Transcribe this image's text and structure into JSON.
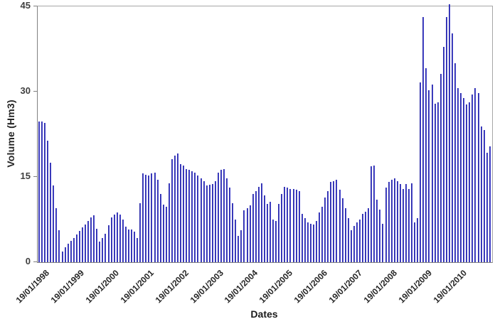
{
  "chart_data": {
    "type": "bar",
    "title": "",
    "xlabel": "Dates",
    "ylabel": "Volume (Hm3)",
    "ylim": [
      0,
      45
    ],
    "y_ticks": [
      0,
      15,
      30,
      45
    ],
    "grid": false,
    "legend": "none",
    "bar_color": "#4444cb",
    "axis_color": "#808080",
    "frame_color": "#a6a6a6",
    "x_tick_labels": [
      "19/01/1998",
      "19/01/1999",
      "19/01/2000",
      "19/01/2001",
      "19/01/2002",
      "19/01/2003",
      "19/01/2004",
      "19/01/2005",
      "19/01/2006",
      "19/01/2007",
      "19/01/2008",
      "19/01/2009",
      "19/01/2010"
    ],
    "x_ticks_every_n_bars": 12,
    "series_note": "monthly volumes, first bar 19/01/1998, last bar Jan 2011, values in Hm3 estimated from pixels",
    "values": [
      24.7,
      24.7,
      24.5,
      21.4,
      17.5,
      13.5,
      9.5,
      5.6,
      1.9,
      2.6,
      3.3,
      3.8,
      4.3,
      4.9,
      5.5,
      6.1,
      6.6,
      7.2,
      7.9,
      8.3,
      5.9,
      3.6,
      4.3,
      5.0,
      6.5,
      7.9,
      8.4,
      8.7,
      8.4,
      7.5,
      6.3,
      5.7,
      5.8,
      5.4,
      4.3,
      10.4,
      15.6,
      15.4,
      15.2,
      15.6,
      15.8,
      14.5,
      12.0,
      10.1,
      9.8,
      13.9,
      18.1,
      18.7,
      19.1,
      17.3,
      17.0,
      16.4,
      16.2,
      16.0,
      15.7,
      15.3,
      14.8,
      14.3,
      13.5,
      13.6,
      13.7,
      14.3,
      15.8,
      16.2,
      16.4,
      14.8,
      13.1,
      10.4,
      7.5,
      4.6,
      5.6,
      9.1,
      9.5,
      10.0,
      12.0,
      12.5,
      13.3,
      13.9,
      11.8,
      10.2,
      10.6,
      7.5,
      7.3,
      10.2,
      12.0,
      13.3,
      13.1,
      12.9,
      12.9,
      12.7,
      12.5,
      8.5,
      7.7,
      7.0,
      6.8,
      6.6,
      7.3,
      8.7,
      9.8,
      11.4,
      12.5,
      14.1,
      14.3,
      14.5,
      12.7,
      11.2,
      9.5,
      7.7,
      5.6,
      6.4,
      7.0,
      7.5,
      8.5,
      8.9,
      9.5,
      16.9,
      17.0,
      11.0,
      9.3,
      6.8,
      13.1,
      14.1,
      14.5,
      14.8,
      14.3,
      13.7,
      12.9,
      13.7,
      12.9,
      13.9,
      7.0,
      7.7,
      31.6,
      43.1,
      34.1,
      30.2,
      31.2,
      27.9,
      28.1,
      33.1,
      37.9,
      43.1,
      45.4,
      40.2,
      35.0,
      30.6,
      29.8,
      28.9,
      27.7,
      28.1,
      29.5,
      30.6,
      29.8,
      23.9,
      23.3,
      19.3,
      20.4
    ]
  }
}
